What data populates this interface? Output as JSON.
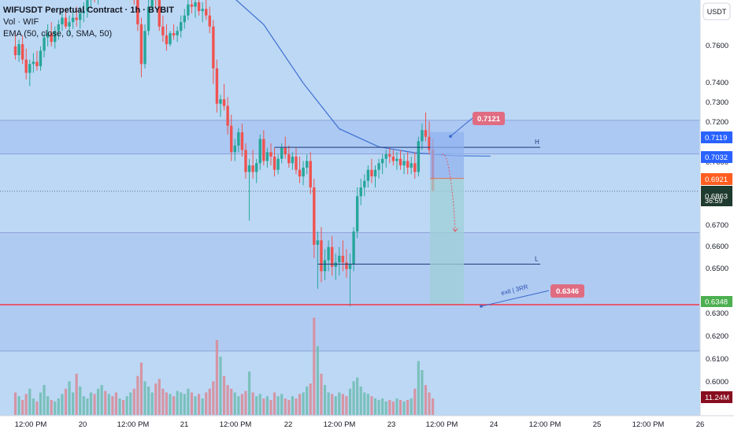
{
  "header": {
    "symbol_title": "WIFUSDT Perpetual Contract · 1h · BYBIT",
    "volume_label": "Vol · WIF",
    "ema_label": "EMA (50, close, 0, SMA, 50)"
  },
  "currency_button": "USDT",
  "price_axis": {
    "ticks": [
      "0.7600",
      "0.7400",
      "0.7300",
      "0.7200",
      "0.7000",
      "0.6700",
      "0.6600",
      "0.6500",
      "0.6300",
      "0.6200",
      "0.6100",
      "0.6000"
    ]
  },
  "time_axis": {
    "ticks": [
      "12:00 PM",
      "20",
      "12:00 PM",
      "21",
      "12:00 PM",
      "22",
      "12:00 PM",
      "23",
      "12:00 PM",
      "24",
      "12:00 PM",
      "25",
      "12:00 PM",
      "26"
    ]
  },
  "price_tags": {
    "level_h": "0.7119",
    "level_h2": "0.7032",
    "entry": "0.6921",
    "last": "0.6863",
    "countdown": "36:59",
    "exit": "0.6348",
    "volume": "11.24M"
  },
  "annotations": {
    "h_label": "H",
    "l_label": "L",
    "exit_label": "exit | 3RR",
    "callout_top": "0.7121",
    "callout_bottom": "0.6346"
  },
  "colors": {
    "background": "#bcd8f5",
    "bull": "#26a69a",
    "bear": "#ef5350",
    "ema": "#3f6fd1",
    "exit_line": "#f23645",
    "callout": "#e06c82"
  },
  "chart_data": {
    "type": "candlestick",
    "title": "WIFUSDT Perpetual Contract · 1h · BYBIT",
    "ylim": [
      0.592,
      0.785
    ],
    "series": [
      {
        "name": "EMA (50, close, 0, SMA, 50)",
        "type": "line",
        "x": [
          48,
          59,
          69,
          80,
          90,
          101,
          111,
          122,
          132
        ],
        "values": [
          0.7816,
          0.7765,
          0.7619,
          0.7353,
          0.7146,
          0.7064,
          0.7037,
          0.7024,
          0.7022
        ]
      }
    ],
    "candles": [
      [
        0,
        0.752,
        0.758,
        0.746,
        0.748
      ],
      [
        1,
        0.748,
        0.755,
        0.745,
        0.753
      ],
      [
        2,
        0.753,
        0.757,
        0.744,
        0.746
      ],
      [
        3,
        0.746,
        0.751,
        0.737,
        0.74
      ],
      [
        4,
        0.74,
        0.746,
        0.734,
        0.744
      ],
      [
        5,
        0.744,
        0.749,
        0.74,
        0.745
      ],
      [
        6,
        0.745,
        0.75,
        0.741,
        0.743
      ],
      [
        7,
        0.743,
        0.752,
        0.741,
        0.75
      ],
      [
        8,
        0.75,
        0.758,
        0.747,
        0.756
      ],
      [
        9,
        0.756,
        0.762,
        0.752,
        0.758
      ],
      [
        10,
        0.758,
        0.763,
        0.752,
        0.754
      ],
      [
        11,
        0.754,
        0.761,
        0.751,
        0.759
      ],
      [
        12,
        0.759,
        0.764,
        0.755,
        0.762
      ],
      [
        13,
        0.762,
        0.768,
        0.759,
        0.765
      ],
      [
        14,
        0.765,
        0.769,
        0.76,
        0.761
      ],
      [
        15,
        0.761,
        0.766,
        0.757,
        0.763
      ],
      [
        16,
        0.763,
        0.768,
        0.76,
        0.765
      ],
      [
        17,
        0.765,
        0.77,
        0.761,
        0.764
      ],
      [
        18,
        0.764,
        0.77,
        0.76,
        0.767
      ],
      [
        19,
        0.767,
        0.772,
        0.763,
        0.768
      ],
      [
        20,
        0.768,
        0.775,
        0.765,
        0.773
      ],
      [
        21,
        0.773,
        0.779,
        0.77,
        0.776
      ],
      [
        22,
        0.776,
        0.781,
        0.772,
        0.775
      ],
      [
        23,
        0.775,
        0.78,
        0.771,
        0.778
      ],
      [
        24,
        0.778,
        0.783,
        0.774,
        0.781
      ],
      [
        25,
        0.781,
        0.785,
        0.777,
        0.779
      ],
      [
        26,
        0.779,
        0.784,
        0.775,
        0.782
      ],
      [
        27,
        0.782,
        0.785,
        0.778,
        0.78
      ],
      [
        28,
        0.78,
        0.785,
        0.776,
        0.778
      ],
      [
        29,
        0.778,
        0.783,
        0.773,
        0.781
      ],
      [
        30,
        0.781,
        0.785,
        0.776,
        0.777
      ],
      [
        31,
        0.777,
        0.782,
        0.773,
        0.779
      ],
      [
        32,
        0.779,
        0.784,
        0.776,
        0.782
      ],
      [
        33,
        0.782,
        0.785,
        0.771,
        0.773
      ],
      [
        34,
        0.773,
        0.779,
        0.759,
        0.762
      ],
      [
        35,
        0.762,
        0.765,
        0.738,
        0.744
      ],
      [
        36,
        0.744,
        0.762,
        0.742,
        0.759
      ],
      [
        37,
        0.759,
        0.776,
        0.757,
        0.77
      ],
      [
        38,
        0.77,
        0.781,
        0.768,
        0.777
      ],
      [
        39,
        0.777,
        0.782,
        0.77,
        0.773
      ],
      [
        40,
        0.773,
        0.777,
        0.759,
        0.761
      ],
      [
        41,
        0.761,
        0.766,
        0.754,
        0.757
      ],
      [
        42,
        0.757,
        0.762,
        0.75,
        0.753
      ],
      [
        43,
        0.753,
        0.759,
        0.752,
        0.758
      ],
      [
        44,
        0.758,
        0.762,
        0.755,
        0.757
      ],
      [
        45,
        0.757,
        0.761,
        0.754,
        0.759
      ],
      [
        46,
        0.759,
        0.766,
        0.756,
        0.763
      ],
      [
        47,
        0.763,
        0.769,
        0.76,
        0.766
      ],
      [
        48,
        0.766,
        0.773,
        0.764,
        0.771
      ],
      [
        49,
        0.771,
        0.776,
        0.767,
        0.77
      ],
      [
        50,
        0.77,
        0.775,
        0.765,
        0.772
      ],
      [
        51,
        0.772,
        0.776,
        0.766,
        0.768
      ],
      [
        52,
        0.768,
        0.772,
        0.763,
        0.769
      ],
      [
        53,
        0.769,
        0.774,
        0.764,
        0.766
      ],
      [
        54,
        0.766,
        0.77,
        0.758,
        0.761
      ],
      [
        55,
        0.761,
        0.764,
        0.735,
        0.742
      ],
      [
        56,
        0.742,
        0.746,
        0.722,
        0.726
      ],
      [
        57,
        0.726,
        0.73,
        0.72,
        0.728
      ],
      [
        58,
        0.728,
        0.735,
        0.723,
        0.725
      ],
      [
        59,
        0.725,
        0.729,
        0.712,
        0.716
      ],
      [
        60,
        0.716,
        0.721,
        0.7,
        0.704
      ],
      [
        61,
        0.704,
        0.71,
        0.7,
        0.707
      ],
      [
        62,
        0.707,
        0.715,
        0.704,
        0.713
      ],
      [
        63,
        0.713,
        0.717,
        0.702,
        0.705
      ],
      [
        64,
        0.705,
        0.708,
        0.692,
        0.695
      ],
      [
        65,
        0.695,
        0.701,
        0.673,
        0.698
      ],
      [
        66,
        0.698,
        0.705,
        0.692,
        0.695
      ],
      [
        67,
        0.695,
        0.701,
        0.69,
        0.699
      ],
      [
        68,
        0.699,
        0.712,
        0.696,
        0.71
      ],
      [
        69,
        0.71,
        0.714,
        0.698,
        0.7
      ],
      [
        70,
        0.7,
        0.706,
        0.697,
        0.704
      ],
      [
        71,
        0.704,
        0.708,
        0.698,
        0.702
      ],
      [
        72,
        0.702,
        0.706,
        0.693,
        0.696
      ],
      [
        73,
        0.696,
        0.703,
        0.694,
        0.701
      ],
      [
        74,
        0.701,
        0.708,
        0.699,
        0.706
      ],
      [
        75,
        0.706,
        0.711,
        0.701,
        0.703
      ],
      [
        76,
        0.703,
        0.707,
        0.697,
        0.699
      ],
      [
        77,
        0.699,
        0.704,
        0.696,
        0.702
      ],
      [
        78,
        0.702,
        0.706,
        0.694,
        0.696
      ],
      [
        79,
        0.696,
        0.702,
        0.69,
        0.693
      ],
      [
        80,
        0.693,
        0.7,
        0.689,
        0.697
      ],
      [
        81,
        0.697,
        0.703,
        0.694,
        0.7
      ],
      [
        82,
        0.7,
        0.704,
        0.685,
        0.688
      ],
      [
        83,
        0.688,
        0.692,
        0.656,
        0.662
      ],
      [
        84,
        0.662,
        0.668,
        0.642,
        0.664
      ],
      [
        85,
        0.664,
        0.67,
        0.645,
        0.65
      ],
      [
        86,
        0.65,
        0.66,
        0.646,
        0.655
      ],
      [
        87,
        0.655,
        0.664,
        0.65,
        0.661
      ],
      [
        88,
        0.661,
        0.666,
        0.648,
        0.652
      ],
      [
        89,
        0.652,
        0.658,
        0.646,
        0.654
      ],
      [
        90,
        0.654,
        0.661,
        0.648,
        0.657
      ],
      [
        91,
        0.657,
        0.664,
        0.65,
        0.654
      ],
      [
        92,
        0.654,
        0.66,
        0.647,
        0.651
      ],
      [
        93,
        0.651,
        0.658,
        0.634,
        0.653
      ],
      [
        94,
        0.653,
        0.67,
        0.65,
        0.668
      ],
      [
        95,
        0.668,
        0.688,
        0.665,
        0.684
      ],
      [
        96,
        0.684,
        0.692,
        0.68,
        0.688
      ],
      [
        97,
        0.688,
        0.694,
        0.684,
        0.691
      ],
      [
        98,
        0.691,
        0.698,
        0.688,
        0.696
      ],
      [
        99,
        0.696,
        0.701,
        0.69,
        0.693
      ],
      [
        100,
        0.693,
        0.698,
        0.688,
        0.696
      ],
      [
        101,
        0.696,
        0.701,
        0.692,
        0.699
      ],
      [
        102,
        0.699,
        0.703,
        0.694,
        0.701
      ],
      [
        103,
        0.701,
        0.705,
        0.697,
        0.703
      ],
      [
        104,
        0.703,
        0.706,
        0.699,
        0.702
      ],
      [
        105,
        0.702,
        0.705,
        0.698,
        0.7
      ],
      [
        106,
        0.7,
        0.704,
        0.696,
        0.701
      ],
      [
        107,
        0.701,
        0.705,
        0.696,
        0.698
      ],
      [
        108,
        0.698,
        0.703,
        0.694,
        0.7
      ],
      [
        109,
        0.7,
        0.704,
        0.694,
        0.697
      ],
      [
        110,
        0.697,
        0.702,
        0.694,
        0.699
      ],
      [
        111,
        0.699,
        0.704,
        0.692,
        0.695
      ],
      [
        112,
        0.695,
        0.711,
        0.693,
        0.709
      ],
      [
        113,
        0.709,
        0.717,
        0.705,
        0.714
      ],
      [
        114,
        0.714,
        0.722,
        0.709,
        0.711
      ],
      [
        115,
        0.711,
        0.718,
        0.703,
        0.705
      ],
      [
        116,
        0.705,
        0.71,
        0.688,
        0.6863
      ]
    ],
    "volume": [
      0.3,
      0.25,
      0.2,
      0.28,
      0.35,
      0.22,
      0.18,
      0.3,
      0.4,
      0.25,
      0.2,
      0.18,
      0.22,
      0.28,
      0.35,
      0.45,
      0.3,
      0.55,
      0.38,
      0.25,
      0.22,
      0.3,
      0.28,
      0.35,
      0.4,
      0.32,
      0.28,
      0.25,
      0.3,
      0.22,
      0.2,
      0.25,
      0.3,
      0.35,
      0.52,
      0.7,
      0.45,
      0.38,
      0.3,
      0.42,
      0.48,
      0.35,
      0.3,
      0.28,
      0.25,
      0.32,
      0.3,
      0.28,
      0.35,
      0.3,
      0.25,
      0.28,
      0.22,
      0.3,
      0.35,
      0.45,
      1.0,
      0.78,
      0.52,
      0.4,
      0.35,
      0.3,
      0.25,
      0.28,
      0.32,
      0.58,
      0.3,
      0.25,
      0.28,
      0.22,
      0.25,
      0.2,
      0.3,
      0.25,
      0.28,
      0.22,
      0.2,
      0.25,
      0.22,
      0.28,
      0.3,
      0.38,
      0.42,
      1.3,
      0.92,
      0.55,
      0.4,
      0.3,
      0.28,
      0.25,
      0.3,
      0.28,
      0.25,
      0.35,
      0.45,
      0.5,
      0.38,
      0.3,
      0.28,
      0.25,
      0.22,
      0.2,
      0.22,
      0.18,
      0.2,
      0.18,
      0.22,
      0.2,
      0.18,
      0.2,
      0.22,
      0.35,
      0.72,
      0.6,
      0.4,
      0.3,
      0.22
    ],
    "levels": {
      "upper_zone_top": 0.7185,
      "upper_zone_bottom": 0.7032,
      "h_line": 0.7062,
      "mid_zone_top": 0.6675,
      "l_line": 0.6532,
      "lower_zone_bottom": 0.6138,
      "exit": 0.6348,
      "entry": 0.6921,
      "last": 0.6863
    },
    "ylabel": "USDT"
  }
}
